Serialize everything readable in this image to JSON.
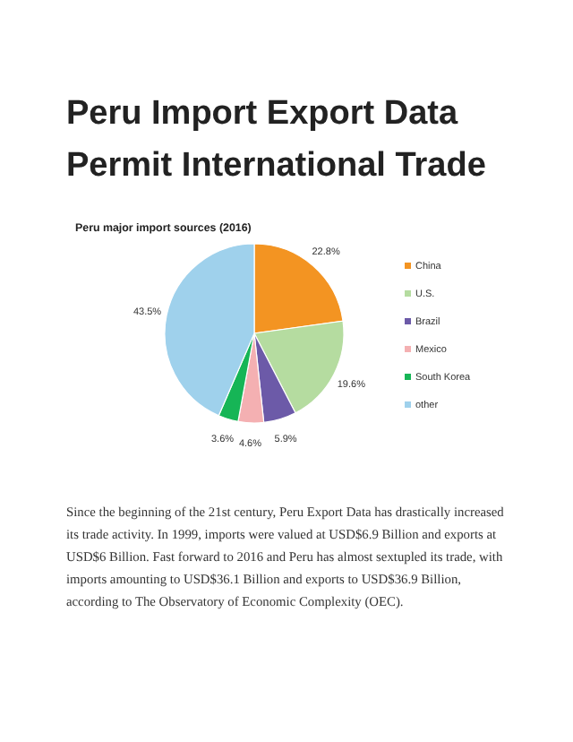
{
  "chart_data": {
    "type": "pie",
    "title": "Peru Import Export Data Permit International Trade",
    "subtitle": "Peru major import sources (2016)",
    "categories": [
      "China",
      "U.S.",
      "Brazil",
      "Mexico",
      "South Korea",
      "other"
    ],
    "values": [
      22.8,
      19.6,
      5.9,
      4.6,
      3.6,
      43.5
    ],
    "value_labels": [
      "22.8%",
      "19.6%",
      "5.9%",
      "4.6%",
      "3.6%",
      "43.5%"
    ],
    "colors": [
      "#f39422",
      "#b5dca0",
      "#6c5aa8",
      "#f4b0b2",
      "#16b556",
      "#9fd1ec"
    ],
    "legend": "right",
    "annotations": [
      "Since the beginning of the 21st century, Peru Export Data has drastically increased its trade activity. In 1999, imports were valued at USD$6.9 Billion and exports at USD$6 Billion. Fast forward to 2016 and Peru has almost sextupled its trade, with imports amounting to USD$36.1 Billion and exports to USD$36.9 Billion, according to The Observatory of Economic Complexity (OEC)."
    ]
  }
}
